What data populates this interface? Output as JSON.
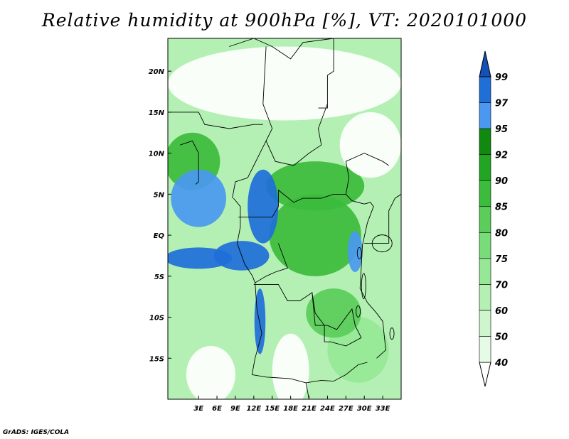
{
  "title": "Relative humidity at 900hPa [%], VT: 2020101000",
  "footer": "GrADS: IGES/COLA",
  "chart_data": {
    "type": "heatmap",
    "title": "Relative humidity at 900hPa [%], VT: 2020101000",
    "variable": "Relative humidity",
    "level": "900hPa",
    "units": "%",
    "valid_time": "2020101000",
    "lon_range": [
      -2,
      36
    ],
    "lat_range": [
      -20,
      24
    ],
    "x_ticks": [
      {
        "lon": 3,
        "label": "3E"
      },
      {
        "lon": 6,
        "label": "6E"
      },
      {
        "lon": 9,
        "label": "9E"
      },
      {
        "lon": 12,
        "label": "12E"
      },
      {
        "lon": 15,
        "label": "15E"
      },
      {
        "lon": 18,
        "label": "18E"
      },
      {
        "lon": 21,
        "label": "21E"
      },
      {
        "lon": 24,
        "label": "24E"
      },
      {
        "lon": 27,
        "label": "27E"
      },
      {
        "lon": 30,
        "label": "30E"
      },
      {
        "lon": 33,
        "label": "33E"
      }
    ],
    "y_ticks": [
      {
        "lat": 20,
        "label": "20N"
      },
      {
        "lat": 15,
        "label": "15N"
      },
      {
        "lat": 10,
        "label": "10N"
      },
      {
        "lat": 5,
        "label": "5N"
      },
      {
        "lat": 0,
        "label": "EQ"
      },
      {
        "lat": -5,
        "label": "5S"
      },
      {
        "lat": -10,
        "label": "10S"
      },
      {
        "lat": -15,
        "label": "15S"
      }
    ],
    "colorbar": {
      "levels": [
        40,
        50,
        60,
        70,
        75,
        80,
        85,
        90,
        92,
        95,
        97,
        99
      ],
      "labels": [
        "40",
        "50",
        "60",
        "70",
        "75",
        "80",
        "85",
        "90",
        "92",
        "95",
        "97",
        "99"
      ],
      "colors": [
        "#ffffff",
        "#e6fbe6",
        "#cff5cf",
        "#b4f0b4",
        "#96e896",
        "#78dc78",
        "#5acd5a",
        "#3cbc3c",
        "#22a522",
        "#0f8a0f",
        "#4a98f0",
        "#1f6fd9",
        "#1550b5"
      ]
    },
    "features": [
      {
        "name": "humid-coast-gulf-of-guinea",
        "lon": 3.0,
        "lat": 4.5,
        "rx": 4.5,
        "ry": 3.5,
        "value": 96
      },
      {
        "name": "humid-cameroon",
        "lon": 13.5,
        "lat": 3.5,
        "rx": 2.5,
        "ry": 4.5,
        "value": 97
      },
      {
        "name": "humid-coast-gabon",
        "lon": 10.0,
        "lat": -2.5,
        "rx": 4.5,
        "ry": 1.8,
        "value": 98
      },
      {
        "name": "humid-ocean-band",
        "lon": 3.0,
        "lat": -2.8,
        "rx": 5.5,
        "ry": 1.3,
        "value": 97
      },
      {
        "name": "humid-angola-coast",
        "lon": 13.0,
        "lat": -10.5,
        "rx": 0.9,
        "ry": 4.0,
        "value": 97
      },
      {
        "name": "humid-east-congo",
        "lon": 28.5,
        "lat": -2.0,
        "rx": 1.2,
        "ry": 2.5,
        "value": 96
      },
      {
        "name": "wet-central-congo",
        "lon": 22.0,
        "lat": 0.0,
        "rx": 7.5,
        "ry": 5.0,
        "value": 88
      },
      {
        "name": "wet-central-north",
        "lon": 22.0,
        "lat": 6.0,
        "rx": 8.0,
        "ry": 3.0,
        "value": 86
      },
      {
        "name": "wet-west-africa",
        "lon": 2.0,
        "lat": 9.0,
        "rx": 4.5,
        "ry": 3.5,
        "value": 85
      },
      {
        "name": "wet-zambia",
        "lon": 25.0,
        "lat": -9.5,
        "rx": 4.5,
        "ry": 3.0,
        "value": 82
      },
      {
        "name": "moderate-southeast",
        "lon": 29.0,
        "lat": -14.0,
        "rx": 5.0,
        "ry": 4.0,
        "value": 70
      },
      {
        "name": "moderate-southwest-ocean",
        "lon": 6.0,
        "lat": -12.0,
        "rx": 8.0,
        "ry": 6.0,
        "value": 60
      },
      {
        "name": "dry-sahara",
        "lon": 17.0,
        "lat": 18.5,
        "rx": 19.0,
        "ry": 4.5,
        "value": 20
      },
      {
        "name": "dry-sudan-east",
        "lon": 31.0,
        "lat": 11.0,
        "rx": 5.0,
        "ry": 4.0,
        "value": 35
      },
      {
        "name": "dry-namibia-kalahari",
        "lon": 18.0,
        "lat": -16.5,
        "rx": 3.0,
        "ry": 4.5,
        "value": 30
      },
      {
        "name": "dry-south-atlantic",
        "lon": 5.0,
        "lat": -17.0,
        "rx": 4.0,
        "ry": 3.5,
        "value": 35
      }
    ]
  }
}
